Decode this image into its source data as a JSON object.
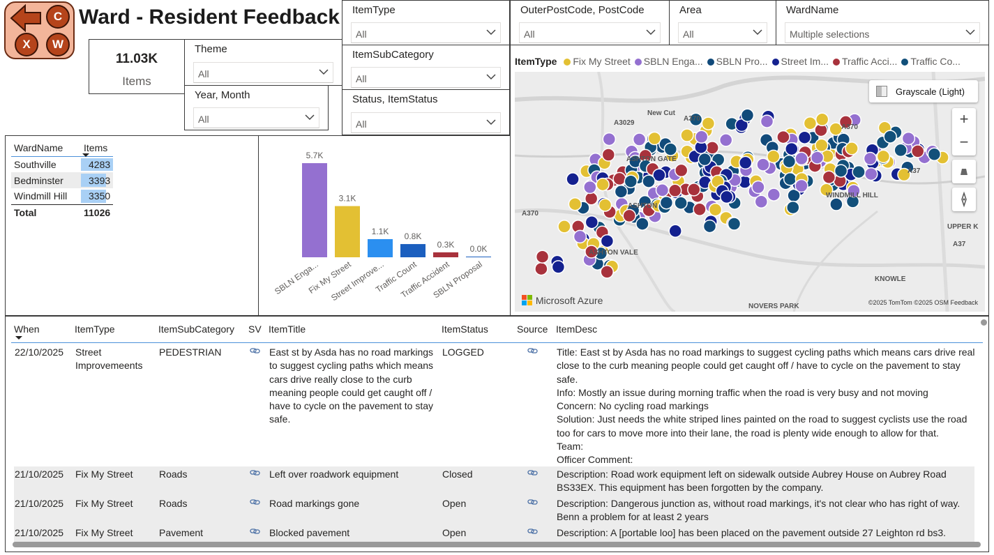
{
  "app": {
    "title": "Ward - Resident Feedback",
    "logo_letters": [
      "C",
      "X",
      "W"
    ]
  },
  "card": {
    "value": "11.03K",
    "label": "Items"
  },
  "slicers": {
    "theme": {
      "title": "Theme",
      "value": "All"
    },
    "year_month": {
      "title": "Year, Month",
      "value": "All"
    },
    "item_type": {
      "title": "ItemType",
      "value": "All"
    },
    "item_subcategory": {
      "title": "ItemSubCategory",
      "value": "All"
    },
    "status": {
      "title": "Status, ItemStatus",
      "value": "All"
    },
    "postcode": {
      "title": "OuterPostCode, PostCode",
      "value": "All"
    },
    "area": {
      "title": "Area",
      "value": "All"
    },
    "ward_name": {
      "title": "WardName",
      "value": "Multiple selections"
    }
  },
  "matrix": {
    "headers": [
      "WardName",
      "Items"
    ],
    "rows": [
      {
        "name": "Southville",
        "value": "4283",
        "fraction": 1.0
      },
      {
        "name": "Bedminster",
        "value": "3393",
        "fraction": 0.79
      },
      {
        "name": "Windmill Hill",
        "value": "3350",
        "fraction": 0.78
      }
    ],
    "total_label": "Total",
    "total_value": "11026"
  },
  "chart_data": {
    "type": "bar",
    "categories": [
      "SBLN Enga...",
      "Fix My Street",
      "Street Improve...",
      "Traffic Count",
      "Traffic Accident",
      "SBLN Proposal"
    ],
    "values": [
      5.7,
      3.1,
      1.1,
      0.8,
      0.3,
      0.0
    ],
    "data_labels": [
      "5.7K",
      "3.1K",
      "1.1K",
      "0.8K",
      "0.3K",
      "0.0K"
    ],
    "colors": [
      "#9470d0",
      "#e3c033",
      "#2b8ff0",
      "#1b5fbf",
      "#a8323c",
      "#1b5fbf"
    ],
    "ylim": [
      0,
      5.7
    ],
    "unit": "K"
  },
  "map": {
    "legend_title": "ItemType",
    "legend": [
      {
        "label": "Fix My Street",
        "color": "#e3c033"
      },
      {
        "label": "SBLN Enga...",
        "color": "#9470d0"
      },
      {
        "label": "SBLN Pro...",
        "color": "#114a7a"
      },
      {
        "label": "Street Im...",
        "color": "#14218f"
      },
      {
        "label": "Traffic Acci...",
        "color": "#a8323c"
      },
      {
        "label": "Traffic Co...",
        "color": "#12507a"
      }
    ],
    "style_button": "Grayscale (Light)",
    "labels": [
      "ASHTON GATE",
      "ASHTON",
      "ASHTON VALE",
      "WINDMILL HILL",
      "KNOWLE",
      "NOVERS PARK",
      "UPPER K",
      "New Cut",
      "A3029",
      "A370",
      "A370",
      "A370",
      "A37",
      "A37"
    ],
    "brand": "Microsoft Azure",
    "copyright": "©2025 TomTom  ©2025 OSM  Feedback"
  },
  "grid": {
    "headers": [
      "When",
      "ItemType",
      "ItemSubCategory",
      "SV",
      "ItemTitle",
      "ItemStatus",
      "Source",
      "ItemDesc"
    ],
    "rows": [
      {
        "when": "22/10/2025",
        "type": "Street Improvemeents",
        "subcat": "PEDESTRIAN",
        "title": "East st by Asda has no road markings to suggest cycling paths which means cars drive really close to the curb meaning people could get caught off / have to cycle on the pavement to stay safe.",
        "status": "LOGGED",
        "desc": "Title: East st by Asda has no road markings to suggest cycling paths which means cars drive really close to the curb meaning people could get caught off / have to cycle on the pavement to stay safe.\nInfo: Mostly an issue during morning traffic when the road is very busy and not moving\nConcern: No cycling road markings\nSolution: Just needs the white striped lines painted on the road to suggest cyclists use the road too for cars to move more into their lane, the road is plenty wide enough to allow for that.\nTeam:\nOfficer Comment:"
      },
      {
        "when": "21/10/2025",
        "type": "Fix My Street",
        "subcat": "Roads",
        "title": "Left over roadwork equipment",
        "status": "Closed",
        "desc": "Description: Road work equipment left on sidewalk outside Aubrey House on Aubrey Road BS33EX. This equipment has been forgotten by the company."
      },
      {
        "when": "21/10/2025",
        "type": "Fix My Street",
        "subcat": "Roads",
        "title": "Road markings gone",
        "status": "Open",
        "desc": "Description: Dangerous junction as, without road markings, it's not clear who has right of way. Benn a problem for at least 2 years"
      },
      {
        "when": "21/10/2025",
        "type": "Fix My Street",
        "subcat": "Pavement",
        "title": "Blocked pavement",
        "status": "Open",
        "desc": "Description: A [portable loo] has been placed on the pavement outside 27 Leighton rd bs3."
      }
    ]
  }
}
